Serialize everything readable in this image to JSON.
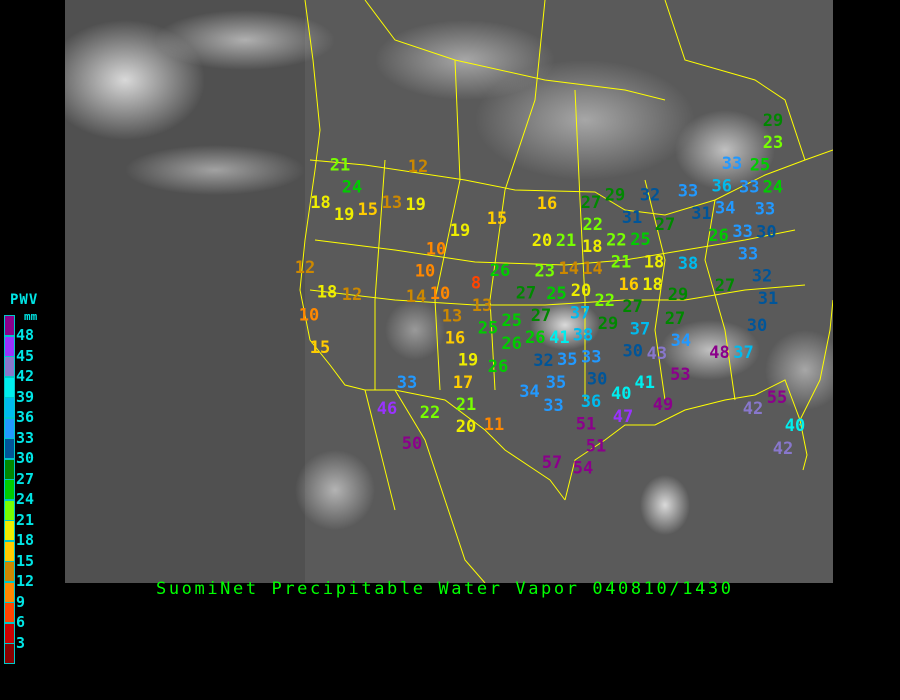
{
  "title": "SuomiNet Precipitable Water Vapor 040810/1430",
  "legend": {
    "title": "PWV",
    "unit": "mm",
    "bins": [
      {
        "label": "48",
        "color": "#8b008b"
      },
      {
        "label": "45",
        "color": "#9933ff"
      },
      {
        "label": "42",
        "color": "#8877cc"
      },
      {
        "label": "39",
        "color": "#00eeee"
      },
      {
        "label": "36",
        "color": "#00bbee"
      },
      {
        "label": "33",
        "color": "#2299ff"
      },
      {
        "label": "30",
        "color": "#005599"
      },
      {
        "label": "27",
        "color": "#008800"
      },
      {
        "label": "24",
        "color": "#00cc00"
      },
      {
        "label": "21",
        "color": "#77ff00"
      },
      {
        "label": "18",
        "color": "#eeee00"
      },
      {
        "label": "15",
        "color": "#ffcc00"
      },
      {
        "label": "12",
        "color": "#cc8800"
      },
      {
        "label": "9",
        "color": "#ff8800"
      },
      {
        "label": "6",
        "color": "#ff4400"
      },
      {
        "label": "3",
        "color": "#cc0000"
      },
      {
        "label": "",
        "color": "#880000"
      }
    ]
  },
  "map": {
    "border_color": "#ffff00",
    "station_values": [
      21,
      24,
      18,
      15,
      13,
      19,
      19,
      12,
      16,
      15,
      19,
      20,
      21,
      10,
      12,
      26,
      23,
      14,
      14,
      10,
      14,
      10,
      8,
      13,
      13,
      18,
      12,
      10,
      27,
      25,
      25,
      25,
      27,
      26,
      15,
      16,
      29,
      23,
      33,
      25,
      24,
      33,
      29,
      27,
      32,
      33,
      36,
      34,
      31,
      27,
      31,
      33,
      30,
      26,
      33,
      33,
      22,
      22,
      25,
      18,
      21,
      18,
      18,
      38,
      32,
      31,
      20,
      22,
      27,
      16,
      29,
      27,
      37,
      38,
      29,
      37,
      27,
      30,
      41,
      26,
      32,
      35,
      33,
      30,
      30,
      34,
      43,
      48,
      37,
      19,
      17,
      26,
      33,
      35,
      34,
      33,
      53,
      41,
      40,
      21,
      20,
      22,
      46,
      36,
      51,
      47,
      49,
      55,
      42,
      40,
      42,
      11,
      51,
      50,
      57,
      54
    ]
  }
}
